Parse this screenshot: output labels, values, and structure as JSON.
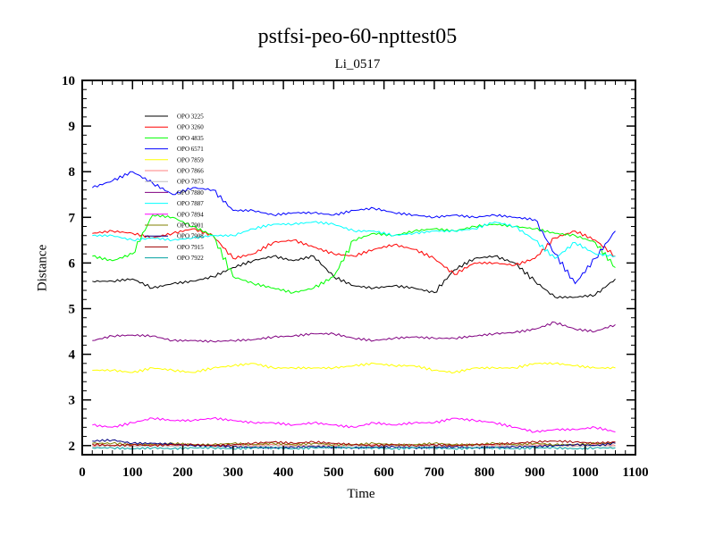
{
  "chart_data": {
    "type": "line",
    "title": "pstfsi-peo-60-npttest05",
    "subtitle": "Li_0517",
    "xlabel": "Time",
    "ylabel": "Distance",
    "xlim": [
      0,
      1100
    ],
    "ylim": [
      1.8,
      10
    ],
    "xticks": [
      "0",
      "100",
      "200",
      "300",
      "400",
      "500",
      "600",
      "700",
      "800",
      "900",
      "1000",
      "1100"
    ],
    "yticks": [
      "2",
      "3",
      "4",
      "5",
      "6",
      "7",
      "8",
      "9",
      "10"
    ],
    "x": [
      20,
      60,
      100,
      140,
      180,
      220,
      260,
      300,
      340,
      380,
      420,
      460,
      500,
      540,
      580,
      620,
      660,
      700,
      740,
      780,
      820,
      860,
      900,
      940,
      980,
      1020,
      1060
    ],
    "legend_position": "top-left",
    "series": [
      {
        "name": "OPO 3225",
        "color": "#000000",
        "values": [
          5.6,
          5.6,
          5.65,
          5.45,
          5.55,
          5.6,
          5.7,
          5.9,
          6.05,
          6.15,
          6.05,
          6.15,
          5.7,
          5.5,
          5.45,
          5.5,
          5.45,
          5.35,
          5.85,
          6.1,
          6.15,
          6.0,
          5.6,
          5.25,
          5.25,
          5.3,
          5.65
        ]
      },
      {
        "name": "OPO 3260",
        "color": "#ff0000",
        "values": [
          6.65,
          6.7,
          6.65,
          6.55,
          6.65,
          6.75,
          6.6,
          6.1,
          6.2,
          6.45,
          6.5,
          6.35,
          6.2,
          6.15,
          6.3,
          6.4,
          6.3,
          6.1,
          5.75,
          6.0,
          6.0,
          5.95,
          6.1,
          6.55,
          6.7,
          6.5,
          6.15
        ]
      },
      {
        "name": "OPO 4835",
        "color": "#00ff00",
        "values": [
          6.15,
          6.05,
          6.2,
          7.05,
          7.0,
          6.8,
          6.6,
          5.7,
          5.55,
          5.45,
          5.35,
          5.45,
          5.7,
          6.5,
          6.65,
          6.6,
          6.7,
          6.75,
          6.7,
          6.8,
          6.85,
          6.8,
          6.75,
          6.65,
          6.6,
          6.45,
          5.9
        ]
      },
      {
        "name": "OPO 6571",
        "color": "#0000ff",
        "values": [
          7.65,
          7.8,
          8.0,
          7.75,
          7.5,
          7.65,
          7.6,
          7.15,
          7.15,
          7.05,
          7.1,
          7.1,
          7.05,
          7.15,
          7.2,
          7.1,
          7.05,
          7.0,
          7.05,
          7.0,
          7.05,
          7.0,
          6.95,
          6.2,
          5.55,
          6.1,
          6.7
        ]
      },
      {
        "name": "OPO 7859",
        "color": "#ffff00",
        "values": [
          3.65,
          3.65,
          3.6,
          3.7,
          3.65,
          3.6,
          3.7,
          3.75,
          3.8,
          3.7,
          3.7,
          3.7,
          3.7,
          3.75,
          3.8,
          3.75,
          3.75,
          3.65,
          3.6,
          3.7,
          3.7,
          3.7,
          3.8,
          3.8,
          3.75,
          3.7,
          3.7
        ]
      },
      {
        "name": "OPO 7866",
        "color": "#ff8080",
        "values": [
          2.0,
          2.0,
          2.0,
          2.02,
          2.0,
          2.0,
          2.02,
          2.0,
          2.0,
          2.02,
          2.0,
          2.0,
          2.0,
          2.0,
          2.02,
          2.0,
          2.0,
          2.0,
          2.02,
          2.0,
          2.0,
          2.0,
          2.02,
          2.0,
          2.0,
          2.02,
          2.0
        ]
      },
      {
        "name": "OPO 7873",
        "color": "#c0c0c0",
        "values": [
          1.98,
          2.0,
          1.98,
          2.0,
          1.98,
          2.0,
          1.98,
          2.0,
          1.98,
          2.0,
          1.98,
          2.0,
          1.98,
          2.0,
          1.98,
          2.0,
          1.98,
          2.0,
          1.98,
          2.0,
          1.98,
          2.0,
          1.98,
          2.0,
          1.98,
          2.0,
          1.98
        ]
      },
      {
        "name": "OPO 7880",
        "color": "#800080",
        "values": [
          4.3,
          4.4,
          4.42,
          4.4,
          4.3,
          4.3,
          4.28,
          4.3,
          4.32,
          4.38,
          4.4,
          4.45,
          4.45,
          4.35,
          4.3,
          4.35,
          4.38,
          4.35,
          4.35,
          4.4,
          4.45,
          4.48,
          4.55,
          4.7,
          4.55,
          4.5,
          4.65
        ]
      },
      {
        "name": "OPO 7887",
        "color": "#00ffff",
        "values": [
          6.6,
          6.6,
          6.5,
          6.55,
          6.5,
          6.55,
          6.6,
          6.6,
          6.75,
          6.85,
          6.85,
          6.9,
          6.85,
          6.7,
          6.7,
          6.6,
          6.65,
          6.7,
          6.7,
          6.75,
          6.9,
          6.8,
          6.5,
          6.1,
          6.45,
          6.2,
          6.15
        ]
      },
      {
        "name": "OPO 7894",
        "color": "#ff00ff",
        "values": [
          2.45,
          2.4,
          2.5,
          2.6,
          2.55,
          2.55,
          2.6,
          2.55,
          2.5,
          2.5,
          2.45,
          2.5,
          2.45,
          2.4,
          2.5,
          2.45,
          2.5,
          2.5,
          2.6,
          2.55,
          2.5,
          2.4,
          2.3,
          2.35,
          2.35,
          2.4,
          2.3
        ]
      },
      {
        "name": "OPO 7901",
        "color": "#808000",
        "values": [
          2.05,
          2.05,
          2.02,
          2.02,
          2.05,
          2.02,
          2.02,
          2.05,
          2.02,
          2.05,
          2.02,
          2.05,
          2.02,
          2.02,
          2.05,
          2.02,
          2.02,
          2.05,
          2.02,
          2.02,
          2.05,
          2.02,
          2.05,
          2.02,
          2.02,
          2.05,
          2.05
        ]
      },
      {
        "name": "OPO 7908",
        "color": "#000080",
        "values": [
          2.1,
          2.12,
          2.05,
          2.05,
          2.03,
          2.0,
          2.0,
          1.97,
          1.96,
          1.95,
          1.96,
          1.98,
          1.96,
          1.95,
          1.96,
          1.97,
          1.95,
          1.96,
          1.97,
          1.95,
          1.96,
          1.97,
          1.98,
          2.0,
          2.02,
          2.0,
          2.05
        ]
      },
      {
        "name": "OPO 7915",
        "color": "#a00000",
        "values": [
          2.03,
          2.0,
          2.02,
          2.0,
          2.02,
          2.02,
          2.0,
          2.02,
          2.05,
          2.08,
          2.05,
          2.08,
          2.05,
          2.02,
          2.0,
          2.02,
          2.0,
          2.02,
          2.0,
          2.02,
          2.03,
          2.05,
          2.08,
          2.1,
          2.08,
          2.05,
          2.08
        ]
      },
      {
        "name": "OPO 7922",
        "color": "#00a0a0",
        "values": [
          1.95,
          1.95,
          1.93,
          1.95,
          1.93,
          1.95,
          1.95,
          1.93,
          1.95,
          1.95,
          1.93,
          1.95,
          1.96,
          1.95,
          1.95,
          1.93,
          1.95,
          1.95,
          1.93,
          1.95,
          1.95,
          1.93,
          1.95,
          1.95,
          1.93,
          1.95,
          1.95
        ]
      }
    ]
  }
}
